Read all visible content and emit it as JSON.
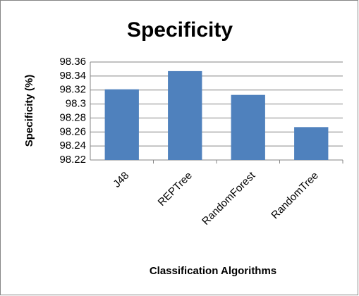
{
  "chart_data": {
    "type": "bar",
    "title": "Specificity",
    "y_label": "Specificity  (%)",
    "x_label": "Classification Algorithms",
    "categories": [
      "J48",
      "REPTree",
      "RandomForest",
      "RandomTree"
    ],
    "values": [
      98.321,
      98.347,
      98.313,
      98.267
    ],
    "color": "#4f81bd",
    "ylim": [
      98.22,
      98.36
    ],
    "yticks": [
      98.22,
      98.24,
      98.26,
      98.28,
      98.3,
      98.32,
      98.34,
      98.36
    ],
    "grid": true
  }
}
